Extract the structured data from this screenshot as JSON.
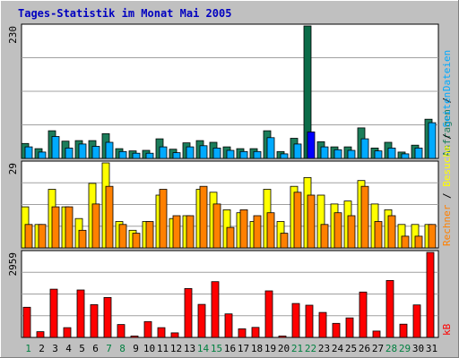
{
  "chart_data": [
    {
      "type": "bar",
      "title": "Tages-Statistik im Monat Mai 2005",
      "categories": [
        "1",
        "2",
        "3",
        "4",
        "5",
        "6",
        "7",
        "8",
        "9",
        "10",
        "11",
        "12",
        "13",
        "14",
        "15",
        "16",
        "17",
        "18",
        "19",
        "20",
        "21",
        "22",
        "23",
        "24",
        "25",
        "26",
        "27",
        "28",
        "29",
        "30",
        "31"
      ],
      "weekend_days": [
        "1",
        "7",
        "8",
        "14",
        "15",
        "21",
        "22",
        "28",
        "29"
      ],
      "ylim": [
        0,
        230
      ],
      "ytick_label": "230",
      "legend": {
        "placement": "right",
        "labels": [
          "Anfragen",
          "Dateien"
        ],
        "separator": " / "
      },
      "highlight_day": "22",
      "series": [
        {
          "name": "Anfragen",
          "values": [
            26,
            17,
            48,
            30,
            31,
            31,
            43,
            17,
            13,
            14,
            34,
            16,
            27,
            31,
            28,
            20,
            17,
            17,
            48,
            12,
            35,
            230,
            29,
            20,
            20,
            53,
            18,
            28,
            11,
            23,
            68
          ]
        },
        {
          "name": "Dateien",
          "values": [
            20,
            11,
            38,
            18,
            25,
            21,
            28,
            12,
            9,
            9,
            20,
            10,
            20,
            22,
            18,
            14,
            12,
            12,
            36,
            8,
            25,
            46,
            20,
            15,
            14,
            34,
            13,
            18,
            8,
            18,
            62
          ]
        }
      ]
    },
    {
      "type": "bar",
      "ylim": [
        0,
        29
      ],
      "ytick_label": "29",
      "legend": {
        "placement": "right",
        "labels": [
          "Rechner",
          "Besuche",
          "Seiten"
        ],
        "separator": " / "
      },
      "series": [
        {
          "name": "Besuche",
          "values": [
            14,
            8,
            20,
            14,
            10,
            22,
            29,
            9,
            6,
            9,
            18,
            10,
            11,
            20,
            19,
            13,
            12,
            9,
            20,
            9,
            21,
            24,
            18,
            15,
            16,
            23,
            15,
            13,
            8,
            8,
            8
          ]
        },
        {
          "name": "Rechner",
          "values": [
            8,
            8,
            14,
            14,
            6,
            15,
            21,
            8,
            5,
            9,
            20,
            11,
            11,
            21,
            15,
            7,
            13,
            11,
            12,
            5,
            19,
            18,
            8,
            12,
            11,
            21,
            9,
            11,
            4,
            4,
            8
          ]
        }
      ]
    },
    {
      "type": "bar",
      "ylim": [
        0,
        2959
      ],
      "ytick_label": "2959",
      "legend": {
        "placement": "right",
        "labels": [
          "kB"
        ]
      },
      "series": [
        {
          "name": "kB",
          "values": [
            1050,
            200,
            1680,
            340,
            1650,
            1140,
            1390,
            450,
            50,
            550,
            340,
            160,
            1700,
            1150,
            1940,
            820,
            300,
            350,
            1620,
            50,
            1180,
            1120,
            870,
            490,
            680,
            1580,
            220,
            1980,
            460,
            1130,
            2959
          ]
        }
      ]
    }
  ],
  "colors": {
    "background": "#c0c0c0",
    "plot_background": "#ffffff",
    "title_text": "#0000c0",
    "weekday_label": "#000000",
    "weekend_label": "#008040",
    "grid": "#a0a0a0",
    "anfragen": "#1b7d5a",
    "dateien": "#00aaff",
    "highlight_anfragen": "#0b6b48",
    "highlight_dateien": "#0000ff",
    "seiten": "#00aaff",
    "besuche": "#ffff00",
    "rechner": "#ff8000",
    "kb": "#ff0000"
  }
}
